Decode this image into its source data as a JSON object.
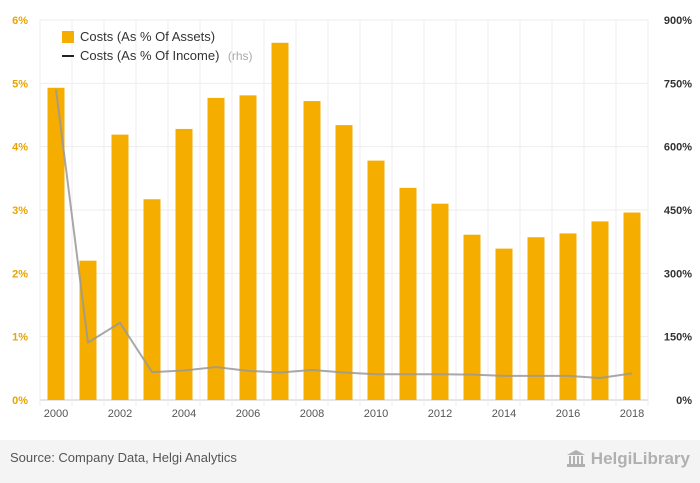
{
  "chart_data": {
    "type": "bar",
    "categories": [
      "2000",
      "2001",
      "2002",
      "2003",
      "2004",
      "2005",
      "2006",
      "2007",
      "2008",
      "2009",
      "2010",
      "2011",
      "2012",
      "2013",
      "2014",
      "2015",
      "2016",
      "2017",
      "2018"
    ],
    "x_tick_labels": [
      "2000",
      "2002",
      "2004",
      "2006",
      "2008",
      "2010",
      "2012",
      "2014",
      "2016",
      "2018"
    ],
    "series": [
      {
        "name": "Costs (As % Of Assets)",
        "type": "bar",
        "axis": "left",
        "color": "#f5ad00",
        "values": [
          4.93,
          2.2,
          4.19,
          3.17,
          4.28,
          4.77,
          4.81,
          5.64,
          4.72,
          4.34,
          3.78,
          3.35,
          3.1,
          2.61,
          2.39,
          2.57,
          2.63,
          2.82,
          2.96
        ]
      },
      {
        "name": "Costs (As % Of Income)",
        "name_suffix": "(rhs)",
        "type": "line",
        "axis": "right",
        "color": "#999999",
        "values": [
          735,
          136,
          183,
          66,
          70,
          78,
          69,
          65,
          71,
          65,
          61,
          61,
          61,
          60,
          57,
          57,
          57,
          52,
          63
        ]
      }
    ],
    "y_left": {
      "min": 0,
      "max": 6,
      "ticks": [
        0,
        1,
        2,
        3,
        4,
        5,
        6
      ],
      "tick_labels": [
        "0%",
        "1%",
        "2%",
        "3%",
        "4%",
        "5%",
        "6%"
      ]
    },
    "y_right": {
      "min": 0,
      "max": 900,
      "ticks": [
        0,
        150,
        300,
        450,
        600,
        750,
        900
      ],
      "tick_labels": [
        "0%",
        "150%",
        "300%",
        "450%",
        "600%",
        "750%",
        "900%"
      ]
    },
    "grid": true,
    "legend_position": "top-left"
  },
  "footer": {
    "source": "Source: Company Data, Helgi Analytics",
    "brand": "HelgiLibrary"
  },
  "colors": {
    "left_axis_labels": "#e9a400",
    "right_axis_labels": "#333333",
    "legend_line": "#222222"
  }
}
